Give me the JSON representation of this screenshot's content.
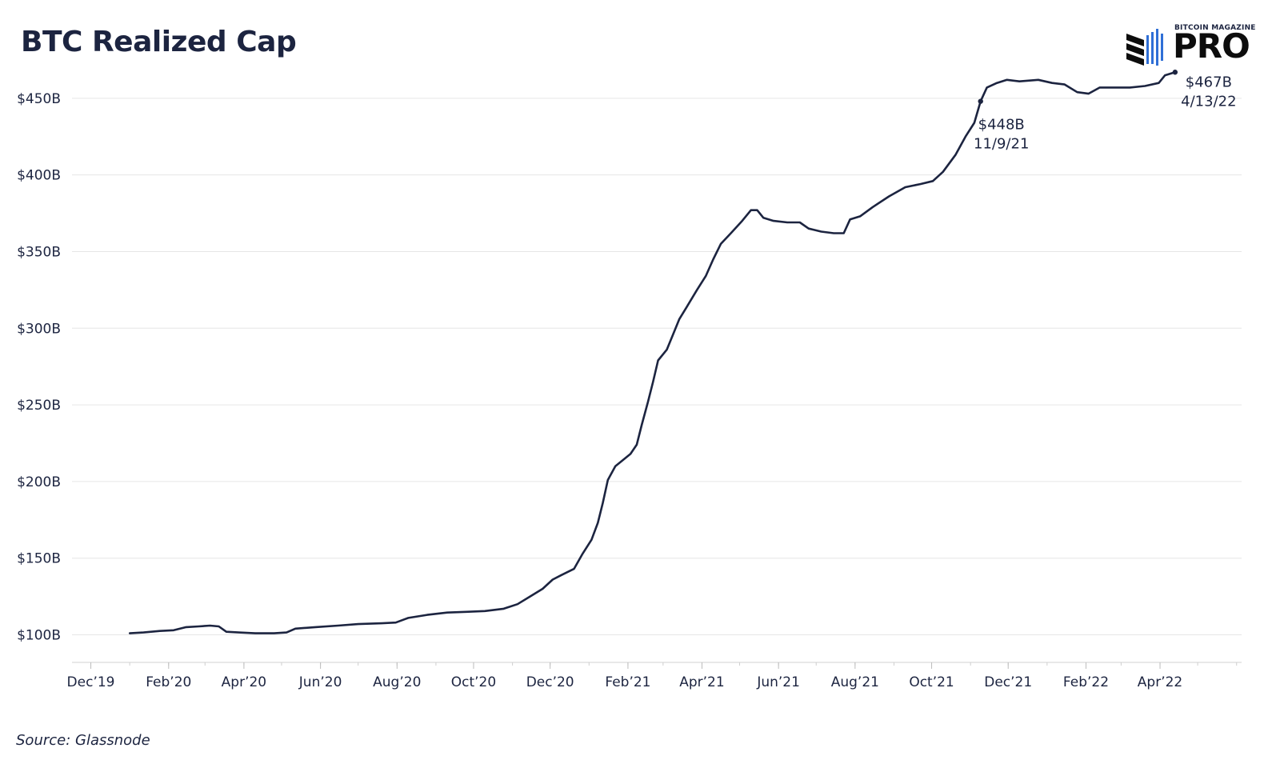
{
  "chart_data": {
    "type": "line",
    "title": "BTC Realized Cap",
    "source": "Source: Glassnode",
    "xlabel": "",
    "ylabel": "",
    "ylim": [
      82,
      464
    ],
    "y_ticks": [
      100,
      150,
      200,
      250,
      300,
      350,
      400,
      450
    ],
    "y_tick_labels": [
      "$100B",
      "$150B",
      "$200B",
      "$250B",
      "$300B",
      "$350B",
      "$400B",
      "$450B"
    ],
    "x_range": [
      "2019-11-16",
      "2022-06-05"
    ],
    "x_ticks": [
      "2019-12-01",
      "2020-02-01",
      "2020-04-01",
      "2020-06-01",
      "2020-08-01",
      "2020-10-01",
      "2020-12-01",
      "2021-02-01",
      "2021-04-01",
      "2021-06-01",
      "2021-08-01",
      "2021-10-01",
      "2021-12-01",
      "2022-02-01",
      "2022-04-01"
    ],
    "x_tick_labels": [
      "Dec’19",
      "Feb’20",
      "Apr’20",
      "Jun’20",
      "Aug’20",
      "Oct’20",
      "Dec’20",
      "Feb’21",
      "Apr’21",
      "Jun’21",
      "Aug’21",
      "Oct’21",
      "Dec’21",
      "Feb’22",
      "Apr’22"
    ],
    "grid": true,
    "legend": "none",
    "line_color": "#1c2440",
    "series": [
      {
        "name": "",
        "points": [
          [
            "2020-01-01",
            101
          ],
          [
            "2020-01-12",
            101.5
          ],
          [
            "2020-01-25",
            102.5
          ],
          [
            "2020-02-05",
            103
          ],
          [
            "2020-02-15",
            105
          ],
          [
            "2020-02-25",
            105.5
          ],
          [
            "2020-03-05",
            106
          ],
          [
            "2020-03-12",
            105.5
          ],
          [
            "2020-03-18",
            102
          ],
          [
            "2020-03-28",
            101.5
          ],
          [
            "2020-04-10",
            101
          ],
          [
            "2020-04-25",
            101
          ],
          [
            "2020-05-05",
            101.5
          ],
          [
            "2020-05-12",
            104
          ],
          [
            "2020-05-28",
            105
          ],
          [
            "2020-06-15",
            106
          ],
          [
            "2020-07-01",
            107
          ],
          [
            "2020-07-20",
            107.5
          ],
          [
            "2020-07-31",
            108
          ],
          [
            "2020-08-10",
            111
          ],
          [
            "2020-08-25",
            113
          ],
          [
            "2020-09-10",
            114.5
          ],
          [
            "2020-09-25",
            115
          ],
          [
            "2020-10-10",
            115.5
          ],
          [
            "2020-10-25",
            117
          ],
          [
            "2020-11-05",
            120
          ],
          [
            "2020-11-15",
            125
          ],
          [
            "2020-11-25",
            130
          ],
          [
            "2020-12-03",
            136
          ],
          [
            "2020-12-10",
            139
          ],
          [
            "2020-12-20",
            143
          ],
          [
            "2020-12-27",
            153
          ],
          [
            "2021-01-03",
            162
          ],
          [
            "2021-01-08",
            173
          ],
          [
            "2021-01-12",
            186
          ],
          [
            "2021-01-16",
            201
          ],
          [
            "2021-01-22",
            210
          ],
          [
            "2021-01-28",
            214
          ],
          [
            "2021-02-03",
            218
          ],
          [
            "2021-02-08",
            224
          ],
          [
            "2021-02-12",
            237
          ],
          [
            "2021-02-17",
            252
          ],
          [
            "2021-02-21",
            265
          ],
          [
            "2021-02-25",
            279
          ],
          [
            "2021-03-04",
            286
          ],
          [
            "2021-03-09",
            296
          ],
          [
            "2021-03-14",
            306
          ],
          [
            "2021-03-20",
            314
          ],
          [
            "2021-03-28",
            325
          ],
          [
            "2021-04-04",
            334
          ],
          [
            "2021-04-10",
            345
          ],
          [
            "2021-04-16",
            355
          ],
          [
            "2021-04-24",
            362
          ],
          [
            "2021-05-03",
            370
          ],
          [
            "2021-05-10",
            377
          ],
          [
            "2021-05-15",
            377
          ],
          [
            "2021-05-20",
            372
          ],
          [
            "2021-05-28",
            370
          ],
          [
            "2021-06-08",
            369
          ],
          [
            "2021-06-18",
            369
          ],
          [
            "2021-06-25",
            365
          ],
          [
            "2021-07-05",
            363
          ],
          [
            "2021-07-15",
            362
          ],
          [
            "2021-07-23",
            362
          ],
          [
            "2021-07-28",
            371
          ],
          [
            "2021-08-05",
            373
          ],
          [
            "2021-08-15",
            379
          ],
          [
            "2021-08-28",
            386
          ],
          [
            "2021-09-10",
            392
          ],
          [
            "2021-09-22",
            394
          ],
          [
            "2021-10-02",
            396
          ],
          [
            "2021-10-10",
            402
          ],
          [
            "2021-10-20",
            413
          ],
          [
            "2021-10-28",
            425
          ],
          [
            "2021-11-04",
            434
          ],
          [
            "2021-11-09",
            448
          ],
          [
            "2021-11-14",
            457
          ],
          [
            "2021-11-22",
            460
          ],
          [
            "2021-11-30",
            462
          ],
          [
            "2021-12-10",
            461
          ],
          [
            "2021-12-25",
            462
          ],
          [
            "2022-01-05",
            460
          ],
          [
            "2022-01-15",
            459
          ],
          [
            "2022-01-25",
            454
          ],
          [
            "2022-02-03",
            453
          ],
          [
            "2022-02-12",
            457
          ],
          [
            "2022-02-25",
            457
          ],
          [
            "2022-03-08",
            457
          ],
          [
            "2022-03-20",
            458
          ],
          [
            "2022-03-31",
            460
          ],
          [
            "2022-04-05",
            465
          ],
          [
            "2022-04-13",
            467
          ]
        ]
      }
    ],
    "annotations": [
      {
        "date": "2021-11-09",
        "value": 448,
        "label": "$448B",
        "sublabel": "11/9/21"
      },
      {
        "date": "2022-04-13",
        "value": 467,
        "label": "$467B",
        "sublabel": "4/13/22"
      }
    ]
  },
  "logo": {
    "small_text": "BITCOIN MAGAZINE",
    "big_text": "PRO"
  }
}
